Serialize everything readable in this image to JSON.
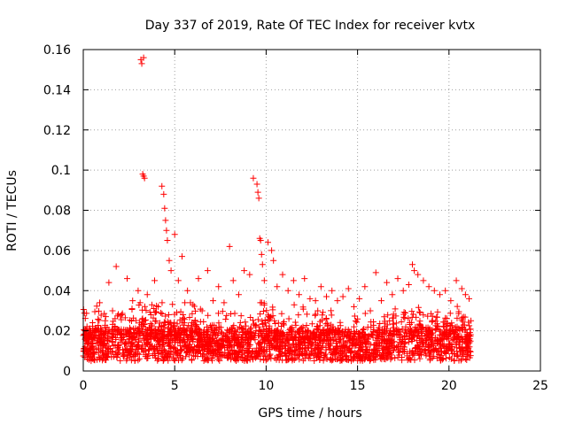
{
  "chart_data": {
    "type": "scatter",
    "title": "Day 337 of 2019, Rate Of TEC Index for receiver kvtx",
    "xlabel": "GPS time / hours",
    "ylabel": "ROTI / TECUs",
    "xlim": [
      0,
      25
    ],
    "ylim": [
      0,
      0.16
    ],
    "xticks": [
      0,
      5,
      10,
      15,
      20,
      25
    ],
    "yticks": [
      0,
      0.02,
      0.04,
      0.06,
      0.08,
      0.1,
      0.12,
      0.14,
      0.16
    ],
    "xtick_labels": [
      "0",
      "5",
      "10",
      "15",
      "20",
      "25"
    ],
    "ytick_labels": [
      "0",
      "0.02",
      "0.04",
      "0.06",
      "0.08",
      "0.1",
      "0.12",
      "0.14",
      "0.16"
    ],
    "grid": true,
    "marker": "plus",
    "color": "#ff0000",
    "series": [
      {
        "x": [
          0.1,
          0.3,
          0.6,
          0.9,
          1.2,
          1.4,
          1.6,
          1.8,
          2.1,
          2.4,
          2.7,
          3.0,
          3.15,
          3.2,
          3.25,
          3.3,
          3.3,
          3.35,
          3.5,
          3.7,
          3.9,
          4.1,
          4.3,
          4.4,
          4.45,
          4.5,
          4.55,
          4.6,
          4.7,
          4.8,
          5.0,
          5.2,
          5.4,
          5.7,
          6.0,
          6.3,
          6.5,
          6.8,
          7.1,
          7.4,
          7.7,
          8.0,
          8.2,
          8.5,
          8.8,
          9.1,
          9.3,
          9.5,
          9.55,
          9.6,
          9.65,
          9.7,
          9.75,
          9.8,
          9.9,
          10.1,
          10.3,
          10.4,
          10.6,
          10.9,
          11.2,
          11.5,
          11.8,
          12.1,
          12.4,
          12.7,
          13.0,
          13.3,
          13.6,
          13.9,
          14.2,
          14.5,
          14.8,
          15.1,
          15.4,
          15.7,
          16.0,
          16.3,
          16.6,
          16.9,
          17.2,
          17.5,
          17.8,
          18.0,
          18.1,
          18.3,
          18.6,
          18.9,
          19.2,
          19.5,
          19.8,
          20.1,
          20.4,
          20.7,
          20.9,
          21.1,
          21.2
        ],
        "y": [
          0.012,
          0.015,
          0.02,
          0.034,
          0.025,
          0.044,
          0.03,
          0.052,
          0.028,
          0.046,
          0.035,
          0.04,
          0.155,
          0.153,
          0.098,
          0.097,
          0.156,
          0.096,
          0.038,
          0.028,
          0.045,
          0.032,
          0.092,
          0.088,
          0.081,
          0.075,
          0.07,
          0.065,
          0.055,
          0.05,
          0.068,
          0.045,
          0.057,
          0.04,
          0.033,
          0.046,
          0.03,
          0.05,
          0.035,
          0.042,
          0.034,
          0.062,
          0.045,
          0.038,
          0.05,
          0.048,
          0.096,
          0.093,
          0.089,
          0.086,
          0.066,
          0.065,
          0.058,
          0.053,
          0.045,
          0.064,
          0.06,
          0.055,
          0.042,
          0.048,
          0.04,
          0.045,
          0.038,
          0.046,
          0.036,
          0.035,
          0.042,
          0.037,
          0.04,
          0.035,
          0.037,
          0.041,
          0.032,
          0.036,
          0.042,
          0.03,
          0.049,
          0.035,
          0.044,
          0.038,
          0.046,
          0.04,
          0.043,
          0.053,
          0.05,
          0.048,
          0.045,
          0.042,
          0.04,
          0.038,
          0.04,
          0.035,
          0.045,
          0.041,
          0.038,
          0.036,
          0.025
        ]
      }
    ]
  }
}
